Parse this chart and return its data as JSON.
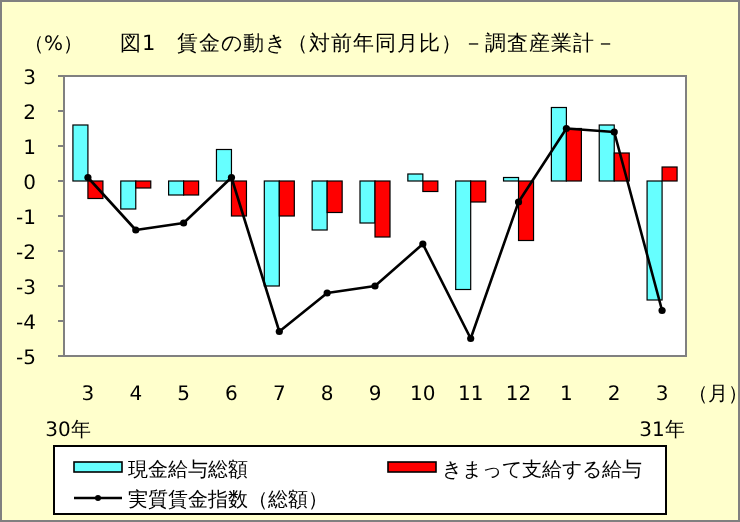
{
  "chart_data": {
    "type": "bar",
    "title": "図1　賃金の動き（対前年同月比）－調査産業計－",
    "ylabel": "（%）",
    "xlabel": "（月）",
    "categories": [
      "3",
      "4",
      "5",
      "6",
      "7",
      "8",
      "9",
      "10",
      "11",
      "12",
      "1",
      "2",
      "3"
    ],
    "series": [
      {
        "name": "現金給与総額",
        "color": "#66ffff",
        "values": [
          1.6,
          -0.8,
          -0.4,
          0.9,
          -3.0,
          -1.4,
          -1.2,
          0.2,
          -3.1,
          0.1,
          2.1,
          1.6,
          -3.4
        ]
      },
      {
        "name": "きまって支給する給与",
        "color": "#ff0000",
        "values": [
          -0.5,
          -0.2,
          -0.4,
          -1.0,
          -1.0,
          -0.9,
          -1.6,
          -0.3,
          -0.6,
          -1.7,
          1.5,
          0.8,
          0.4
        ]
      },
      {
        "name": "実質賃金指数（総額）",
        "type": "line",
        "color": "#000000",
        "marker": "circle",
        "values": [
          0.1,
          -1.4,
          -1.2,
          0.1,
          -4.3,
          -3.2,
          -3.0,
          -1.8,
          -4.5,
          -0.6,
          1.5,
          1.4,
          -3.7
        ]
      }
    ],
    "ylim": [
      -5,
      3
    ],
    "yticks": [
      -5,
      -4,
      -3,
      -2,
      -1,
      0,
      1,
      2,
      3
    ],
    "grid": false,
    "legend": "bottom",
    "annotations": [
      "30年",
      "31年"
    ]
  }
}
